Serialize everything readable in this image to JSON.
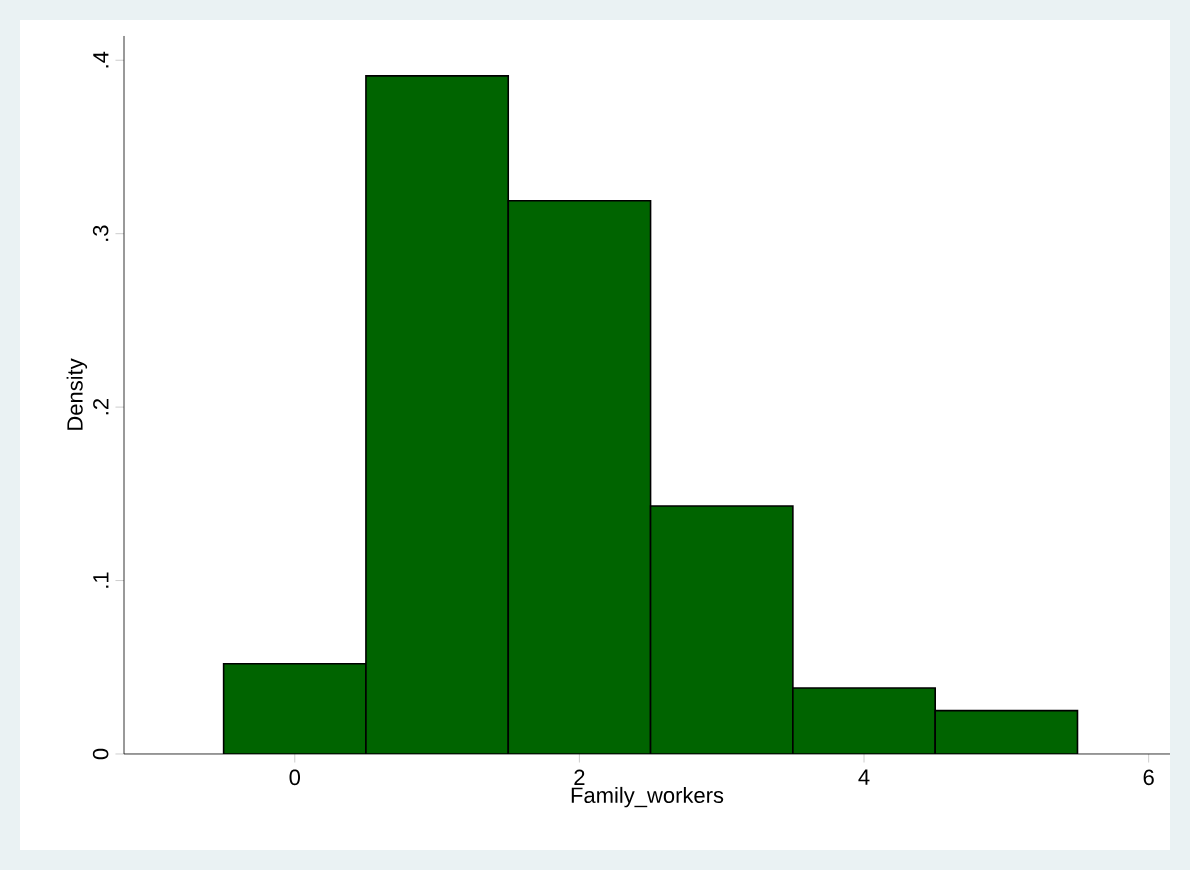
{
  "chart_data": {
    "type": "histogram",
    "xlabel": "Family_workers",
    "ylabel": "Density",
    "bins": [
      -0.5,
      0.5,
      1.5,
      2.5,
      3.5,
      4.5,
      5.5
    ],
    "values": [
      0.052,
      0.391,
      0.319,
      0.143,
      0.038,
      0.025
    ],
    "color": "#006400",
    "xlim": [
      -1.2,
      6.15
    ],
    "ylim": [
      0,
      0.414
    ],
    "xticks": [
      0,
      2,
      4,
      6
    ],
    "yticks": [
      0,
      {
        "value": 0.1,
        "label": ".1"
      },
      {
        "value": 0.2,
        "label": ".2"
      },
      {
        "value": 0.3,
        "label": ".3"
      },
      {
        "value": 0.4,
        "label": ".4"
      }
    ],
    "grid": false
  }
}
